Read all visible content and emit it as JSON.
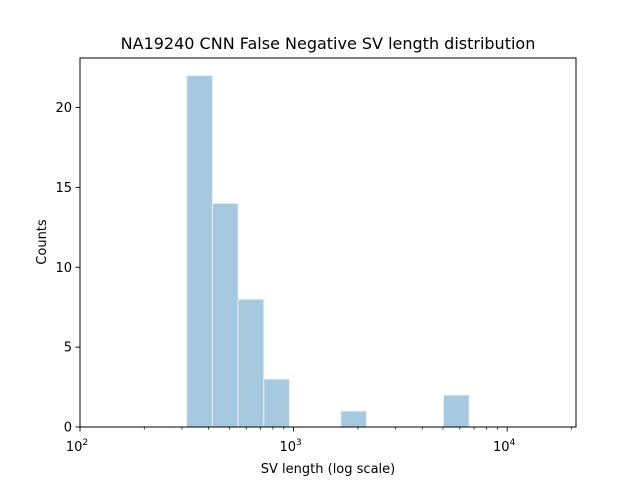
{
  "chart_data": {
    "type": "bar",
    "title": "NA19240 CNN False Negative SV length distribution",
    "xlabel": "SV length (log scale)",
    "ylabel": "Counts",
    "x_scale": "log",
    "xlim": [
      100,
      21000
    ],
    "ylim": [
      0,
      23.1
    ],
    "grid": false,
    "bar_color": "#a6c9e0",
    "bar_edge_color": "#e6f0f7",
    "y_ticks": [
      {
        "value": 0,
        "label": "0"
      },
      {
        "value": 5,
        "label": "5"
      },
      {
        "value": 10,
        "label": "10"
      },
      {
        "value": 15,
        "label": "15"
      },
      {
        "value": 20,
        "label": "20"
      }
    ],
    "x_major_ticks": [
      {
        "value": 100,
        "base": "10",
        "exponent": "2"
      },
      {
        "value": 1000,
        "base": "10",
        "exponent": "3"
      },
      {
        "value": 10000,
        "base": "10",
        "exponent": "4"
      }
    ],
    "bins": [
      {
        "x0": 316,
        "x1": 417,
        "value": 22
      },
      {
        "x0": 417,
        "x1": 550,
        "value": 14
      },
      {
        "x0": 550,
        "x1": 725,
        "value": 8
      },
      {
        "x0": 725,
        "x1": 956,
        "value": 3
      },
      {
        "x0": 956,
        "x1": 1261,
        "value": 0
      },
      {
        "x0": 1261,
        "x1": 1663,
        "value": 0
      },
      {
        "x0": 1663,
        "x1": 2193,
        "value": 1
      },
      {
        "x0": 2193,
        "x1": 2893,
        "value": 0
      },
      {
        "x0": 2893,
        "x1": 3816,
        "value": 0
      },
      {
        "x0": 3816,
        "x1": 5033,
        "value": 0
      },
      {
        "x0": 5033,
        "x1": 6638,
        "value": 2
      }
    ]
  }
}
